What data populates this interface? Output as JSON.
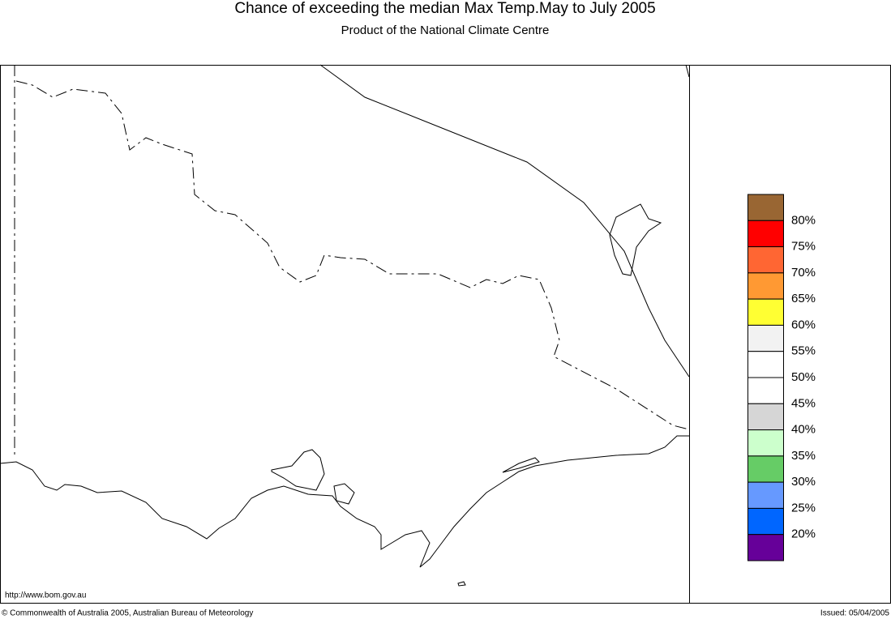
{
  "header": {
    "title": "Chance of exceeding the median Max Temp.May to July 2005",
    "subtitle": "Product of the National Climate Centre"
  },
  "legend": {
    "colors": [
      "#996633",
      "#ff0000",
      "#ff6633",
      "#ff9933",
      "#ffff33",
      "#f2f2f2",
      "#ffffff",
      "#ffffff",
      "#d6d6d6",
      "#ccffcc",
      "#66cc66",
      "#6699ff",
      "#0066ff",
      "#660099"
    ],
    "labels": [
      "80%",
      "75%",
      "70%",
      "65%",
      "60%",
      "55%",
      "50%",
      "45%",
      "40%",
      "35%",
      "30%",
      "25%",
      "20%"
    ]
  },
  "footer": {
    "url": "http://www.bom.gov.au",
    "copyright": "© Commonwealth of Australia 2005, Australian Bureau of Meteorology",
    "issued": "Issued: 05/04/2005"
  }
}
